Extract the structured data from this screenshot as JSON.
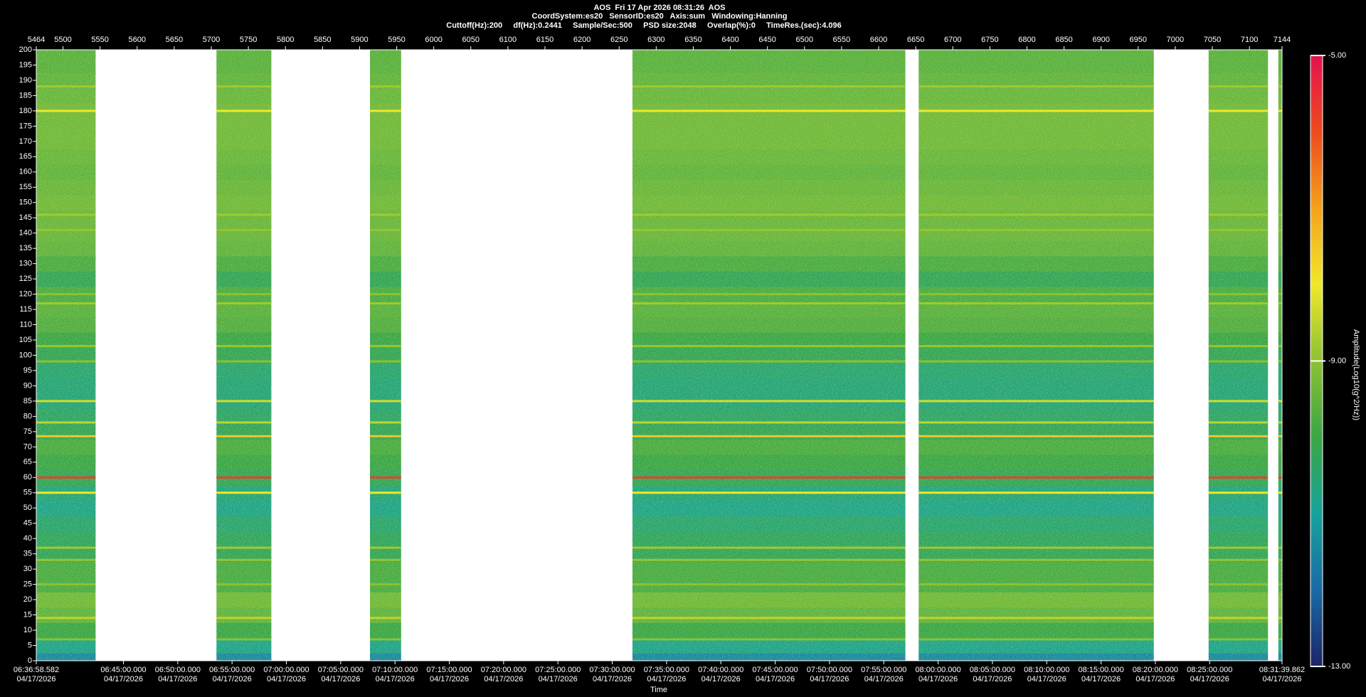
{
  "chart_data": {
    "type": "spectrogram",
    "title_lines": [
      "AOS  Fri 17 Apr 2026 08:31:26  AOS",
      "CoordSystem:es20   SensorID:es20   Axis:sum   Windowing:Hanning",
      "Cuttoff(Hz):200     df(Hz):0.2441     Sample/Sec:500     PSD size:2048     Overlap(%):0     TimeRes.(sec):4.096"
    ],
    "xlabel": "Time",
    "zlabel": "Amplitude(Log10(g^2/Hz))",
    "xlim": [
      5464,
      7144
    ],
    "ylim": [
      0,
      200
    ],
    "zlim": [
      -13,
      -5
    ],
    "xticks": [
      5464,
      5500,
      5550,
      5600,
      5650,
      5700,
      5750,
      5800,
      5850,
      5900,
      5950,
      6000,
      6050,
      6100,
      6150,
      6200,
      6250,
      6300,
      6350,
      6400,
      6450,
      6500,
      6550,
      6600,
      6650,
      6700,
      6750,
      6800,
      6850,
      6900,
      6950,
      7000,
      7050,
      7100,
      7144
    ],
    "x2ticks": [
      {
        "value": 5464,
        "label": "06:36:58.582"
      },
      {
        "value": 5581.53,
        "label": "06:45:00.000"
      },
      {
        "value": 5654.77,
        "label": "06:50:00.000"
      },
      {
        "value": 5728.02,
        "label": "06:55:00.000"
      },
      {
        "value": 5801.26,
        "label": "07:00:00.000"
      },
      {
        "value": 5874.5,
        "label": "07:05:00.000"
      },
      {
        "value": 5947.74,
        "label": "07:10:00.000"
      },
      {
        "value": 6020.99,
        "label": "07:15:00.000"
      },
      {
        "value": 6094.23,
        "label": "07:20:00.000"
      },
      {
        "value": 6167.47,
        "label": "07:25:00.000"
      },
      {
        "value": 6240.71,
        "label": "07:30:00.000"
      },
      {
        "value": 6313.96,
        "label": "07:35:00.000"
      },
      {
        "value": 6387.2,
        "label": "07:40:00.000"
      },
      {
        "value": 6460.44,
        "label": "07:45:00.000"
      },
      {
        "value": 6533.69,
        "label": "07:50:00.000"
      },
      {
        "value": 6606.93,
        "label": "07:55:00.000"
      },
      {
        "value": 6680.17,
        "label": "08:00:00.000"
      },
      {
        "value": 6753.41,
        "label": "08:05:00.000"
      },
      {
        "value": 6826.66,
        "label": "08:10:00.000"
      },
      {
        "value": 6899.9,
        "label": "08:15:00.000"
      },
      {
        "value": 6973.14,
        "label": "08:20:00.000"
      },
      {
        "value": 7046.38,
        "label": "08:25:00.000"
      },
      {
        "value": 7144,
        "label": "08:31:39.862"
      }
    ],
    "x2tick_dates": [
      "04/17/2026",
      "04/17/2026",
      "04/17/2026",
      "04/17/2026",
      "04/17/2026",
      "04/17/2026",
      "04/17/2026",
      "04/17/2026",
      "04/17/2026",
      "04/17/2026",
      "04/17/2026",
      "04/17/2026",
      "04/17/2026",
      "04/17/2026",
      "04/17/2026",
      "04/17/2026",
      "04/17/2026",
      "04/17/2026",
      "04/17/2026",
      "04/17/2026",
      "04/17/2026",
      "04/17/2026",
      "04/17/2026"
    ],
    "yticks": [
      0,
      5,
      10,
      15,
      20,
      25,
      30,
      35,
      40,
      45,
      50,
      55,
      60,
      65,
      70,
      75,
      80,
      85,
      90,
      95,
      100,
      105,
      110,
      115,
      120,
      125,
      130,
      135,
      140,
      145,
      150,
      155,
      160,
      165,
      170,
      175,
      180,
      185,
      190,
      195,
      200
    ],
    "zticks": [
      {
        "value": -13,
        "label": "-13.00"
      },
      {
        "value": -9,
        "label": "-9.00"
      },
      {
        "value": -5,
        "label": "-5.00"
      }
    ],
    "colormap": [
      "#1c2466",
      "#1a6aa6",
      "#16a39c",
      "#3aa645",
      "#8cc232",
      "#f0e82a",
      "#f5a21c",
      "#ee4a1e",
      "#e5124e"
    ],
    "segments": [
      [
        5464,
        5544
      ],
      [
        5707,
        5781
      ],
      [
        5914,
        5956
      ],
      [
        6268,
        6636
      ],
      [
        6654,
        6971
      ],
      [
        7045,
        7125
      ],
      [
        7139,
        7144
      ]
    ],
    "profile": {
      "freqs": [
        0,
        5,
        10,
        15,
        20,
        25,
        30,
        35,
        40,
        45,
        50,
        55,
        60,
        65,
        70,
        75,
        80,
        85,
        90,
        95,
        100,
        105,
        110,
        115,
        120,
        125,
        130,
        135,
        140,
        145,
        150,
        155,
        160,
        165,
        170,
        175,
        180,
        185,
        190,
        195,
        200
      ],
      "levels": [
        -11.5,
        -10.8,
        -10,
        -9.5,
        -9.3,
        -9.8,
        -9.8,
        -10.2,
        -10.3,
        -10.5,
        -10.8,
        -10.6,
        -10.2,
        -10,
        -9.8,
        -10.2,
        -10.4,
        -10.6,
        -10.6,
        -10.5,
        -10.2,
        -10,
        -9.7,
        -9.6,
        -9.8,
        -10.2,
        -9.8,
        -9.5,
        -9.4,
        -9.4,
        -9.3,
        -9.4,
        -9.5,
        -9.4,
        -9.3,
        -9.3,
        -9.3,
        -9.4,
        -9.5,
        -9.6,
        -9.6
      ]
    },
    "lines": {
      "freqs": [
        60,
        73.5,
        55,
        85,
        78,
        180,
        188,
        146,
        141,
        120,
        117,
        103,
        98,
        37,
        33,
        25,
        14,
        7
      ],
      "levels": [
        -5.8,
        -7.5,
        -8,
        -8.3,
        -8.5,
        -8,
        -8.8,
        -8.8,
        -8.9,
        -9,
        -8.8,
        -8.9,
        -9,
        -8.8,
        -8.9,
        -9,
        -8.5,
        -9
      ]
    }
  }
}
